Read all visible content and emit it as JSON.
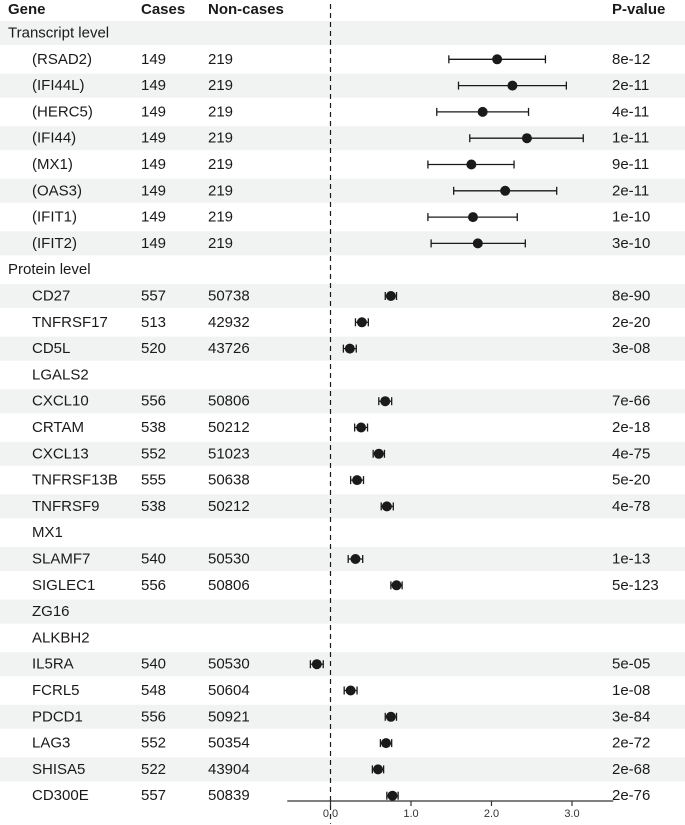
{
  "chart_data": {
    "type": "forest",
    "title": "",
    "columns": {
      "gene": "Gene",
      "cases": "Cases",
      "noncases": "Non-cases",
      "pvalue": "P-value"
    },
    "xlim": [
      -0.5,
      3.5
    ],
    "xticks": [
      "0.0",
      "1.0",
      "2.0",
      "3.0"
    ],
    "xtick_values": [
      0,
      1,
      2,
      3
    ],
    "reference_line": 0,
    "rows": [
      {
        "kind": "section",
        "gene": "Transcript level"
      },
      {
        "kind": "item",
        "gene": "(RSAD2)",
        "cases": "149",
        "noncases": "219",
        "estimate": 2.07,
        "lower": 1.47,
        "upper": 2.67,
        "pvalue": "8e-12"
      },
      {
        "kind": "item",
        "gene": "(IFI44L)",
        "cases": "149",
        "noncases": "219",
        "estimate": 2.26,
        "lower": 1.59,
        "upper": 2.93,
        "pvalue": "2e-11"
      },
      {
        "kind": "item",
        "gene": "(HERC5)",
        "cases": "149",
        "noncases": "219",
        "estimate": 1.89,
        "lower": 1.32,
        "upper": 2.46,
        "pvalue": "4e-11"
      },
      {
        "kind": "item",
        "gene": "(IFI44)",
        "cases": "149",
        "noncases": "219",
        "estimate": 2.44,
        "lower": 1.73,
        "upper": 3.14,
        "pvalue": "1e-11"
      },
      {
        "kind": "item",
        "gene": "(MX1)",
        "cases": "149",
        "noncases": "219",
        "estimate": 1.75,
        "lower": 1.21,
        "upper": 2.28,
        "pvalue": "9e-11"
      },
      {
        "kind": "item",
        "gene": "(OAS3)",
        "cases": "149",
        "noncases": "219",
        "estimate": 2.17,
        "lower": 1.53,
        "upper": 2.81,
        "pvalue": "2e-11"
      },
      {
        "kind": "item",
        "gene": "(IFIT1)",
        "cases": "149",
        "noncases": "219",
        "estimate": 1.77,
        "lower": 1.21,
        "upper": 2.32,
        "pvalue": "1e-10"
      },
      {
        "kind": "item",
        "gene": "(IFIT2)",
        "cases": "149",
        "noncases": "219",
        "estimate": 1.83,
        "lower": 1.25,
        "upper": 2.42,
        "pvalue": "3e-10"
      },
      {
        "kind": "section",
        "gene": "Protein level"
      },
      {
        "kind": "item",
        "gene": "CD27",
        "cases": "557",
        "noncases": "50738",
        "estimate": 0.75,
        "lower": 0.68,
        "upper": 0.82,
        "pvalue": "8e-90"
      },
      {
        "kind": "item",
        "gene": "TNFRSF17",
        "cases": "513",
        "noncases": "42932",
        "estimate": 0.39,
        "lower": 0.31,
        "upper": 0.47,
        "pvalue": "2e-20"
      },
      {
        "kind": "item",
        "gene": "CD5L",
        "cases": "520",
        "noncases": "43726",
        "estimate": 0.24,
        "lower": 0.16,
        "upper": 0.32,
        "pvalue": "3e-08"
      },
      {
        "kind": "item",
        "gene": "LGALS2",
        "cases": "",
        "noncases": "",
        "estimate": null,
        "lower": null,
        "upper": null,
        "pvalue": ""
      },
      {
        "kind": "item",
        "gene": "CXCL10",
        "cases": "556",
        "noncases": "50806",
        "estimate": 0.68,
        "lower": 0.6,
        "upper": 0.76,
        "pvalue": "7e-66"
      },
      {
        "kind": "item",
        "gene": "CRTAM",
        "cases": "538",
        "noncases": "50212",
        "estimate": 0.38,
        "lower": 0.3,
        "upper": 0.46,
        "pvalue": "2e-18"
      },
      {
        "kind": "item",
        "gene": "CXCL13",
        "cases": "552",
        "noncases": "51023",
        "estimate": 0.6,
        "lower": 0.53,
        "upper": 0.67,
        "pvalue": "4e-75"
      },
      {
        "kind": "item",
        "gene": "TNFRSF13B",
        "cases": "555",
        "noncases": "50638",
        "estimate": 0.33,
        "lower": 0.25,
        "upper": 0.41,
        "pvalue": "5e-20"
      },
      {
        "kind": "item",
        "gene": "TNFRSF9",
        "cases": "538",
        "noncases": "50212",
        "estimate": 0.7,
        "lower": 0.63,
        "upper": 0.78,
        "pvalue": "4e-78"
      },
      {
        "kind": "item",
        "gene": "MX1",
        "cases": "",
        "noncases": "",
        "estimate": null,
        "lower": null,
        "upper": null,
        "pvalue": ""
      },
      {
        "kind": "item",
        "gene": "SLAMF7",
        "cases": "540",
        "noncases": "50530",
        "estimate": 0.31,
        "lower": 0.22,
        "upper": 0.4,
        "pvalue": "1e-13"
      },
      {
        "kind": "item",
        "gene": "SIGLEC1",
        "cases": "556",
        "noncases": "50806",
        "estimate": 0.82,
        "lower": 0.75,
        "upper": 0.89,
        "pvalue": "5e-123"
      },
      {
        "kind": "item",
        "gene": "ZG16",
        "cases": "",
        "noncases": "",
        "estimate": null,
        "lower": null,
        "upper": null,
        "pvalue": ""
      },
      {
        "kind": "item",
        "gene": "ALKBH2",
        "cases": "",
        "noncases": "",
        "estimate": null,
        "lower": null,
        "upper": null,
        "pvalue": ""
      },
      {
        "kind": "item",
        "gene": "IL5RA",
        "cases": "540",
        "noncases": "50530",
        "estimate": -0.17,
        "lower": -0.25,
        "upper": -0.09,
        "pvalue": "5e-05"
      },
      {
        "kind": "item",
        "gene": "FCRL5",
        "cases": "548",
        "noncases": "50604",
        "estimate": 0.25,
        "lower": 0.17,
        "upper": 0.33,
        "pvalue": "1e-08"
      },
      {
        "kind": "item",
        "gene": "PDCD1",
        "cases": "556",
        "noncases": "50921",
        "estimate": 0.75,
        "lower": 0.68,
        "upper": 0.82,
        "pvalue": "3e-84"
      },
      {
        "kind": "item",
        "gene": "LAG3",
        "cases": "552",
        "noncases": "50354",
        "estimate": 0.69,
        "lower": 0.62,
        "upper": 0.76,
        "pvalue": "2e-72"
      },
      {
        "kind": "item",
        "gene": "SHISA5",
        "cases": "522",
        "noncases": "43904",
        "estimate": 0.59,
        "lower": 0.52,
        "upper": 0.66,
        "pvalue": "2e-68"
      },
      {
        "kind": "item",
        "gene": "CD300E",
        "cases": "557",
        "noncases": "50839",
        "estimate": 0.77,
        "lower": 0.7,
        "upper": 0.84,
        "pvalue": "2e-76"
      }
    ]
  },
  "colors": {
    "band": "#f1f3f3",
    "ink": "#1a1a1a",
    "axis": "#333333"
  }
}
